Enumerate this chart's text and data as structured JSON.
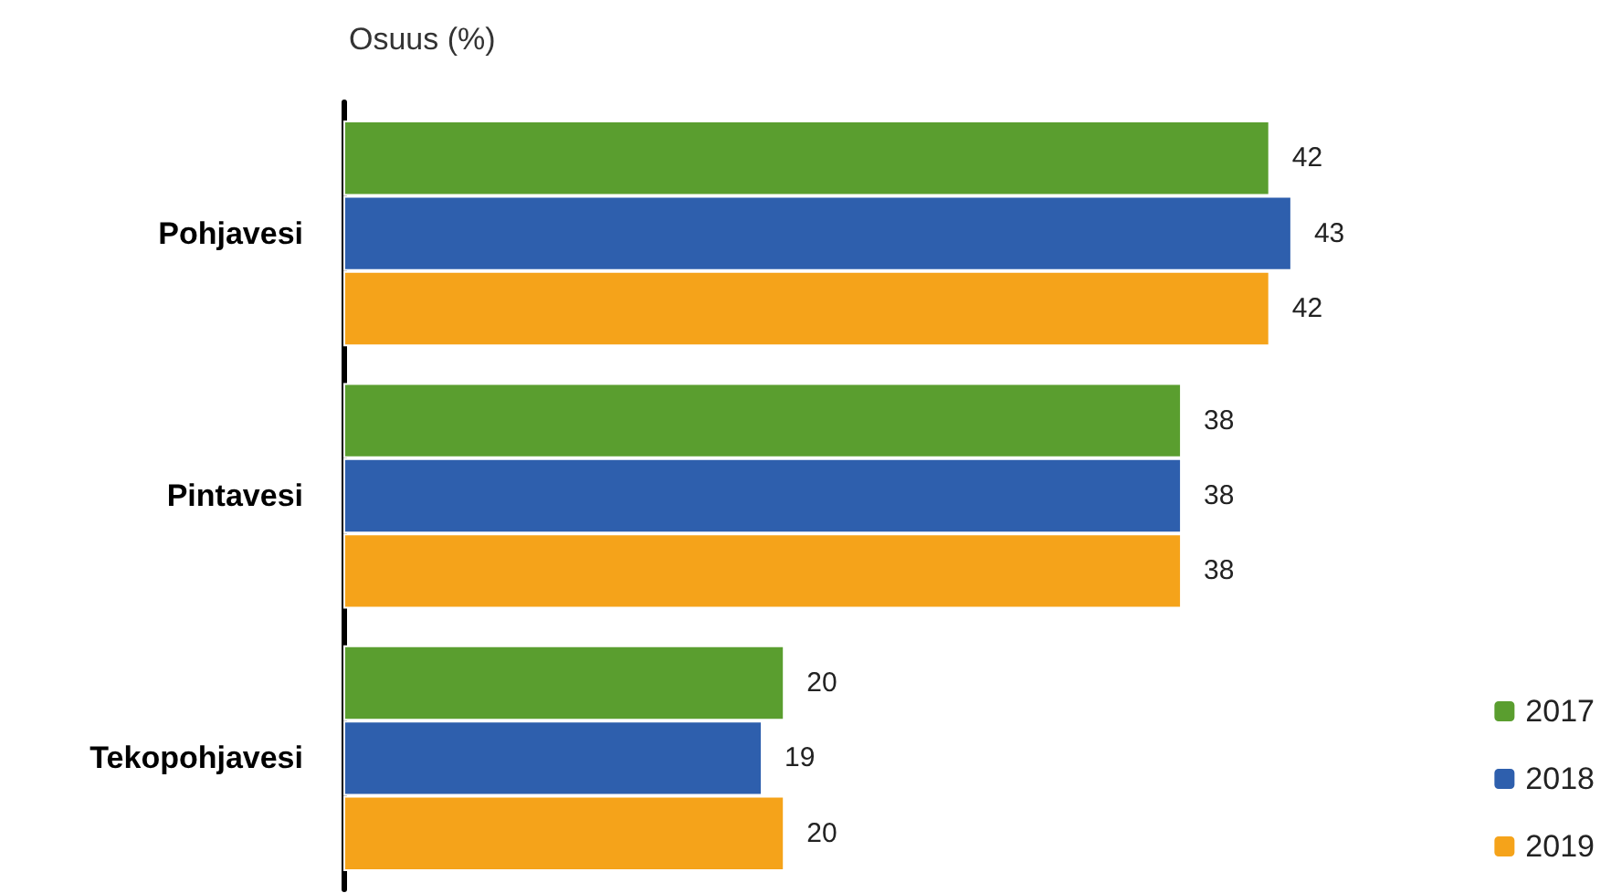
{
  "chart_data": {
    "type": "bar",
    "orientation": "horizontal",
    "title": "Osuus (%)",
    "categories": [
      "Pohjavesi",
      "Pintavesi",
      "Tekopohjavesi"
    ],
    "series": [
      {
        "name": "2017",
        "color": "#5a9e2f",
        "values": [
          42,
          38,
          20
        ]
      },
      {
        "name": "2018",
        "color": "#2e5fad",
        "values": [
          43,
          38,
          19
        ]
      },
      {
        "name": "2019",
        "color": "#f5a31a",
        "values": [
          42,
          38,
          20
        ]
      }
    ],
    "data_labels": true,
    "legend": "bottom right",
    "grid": false,
    "tick_labels": "y"
  }
}
